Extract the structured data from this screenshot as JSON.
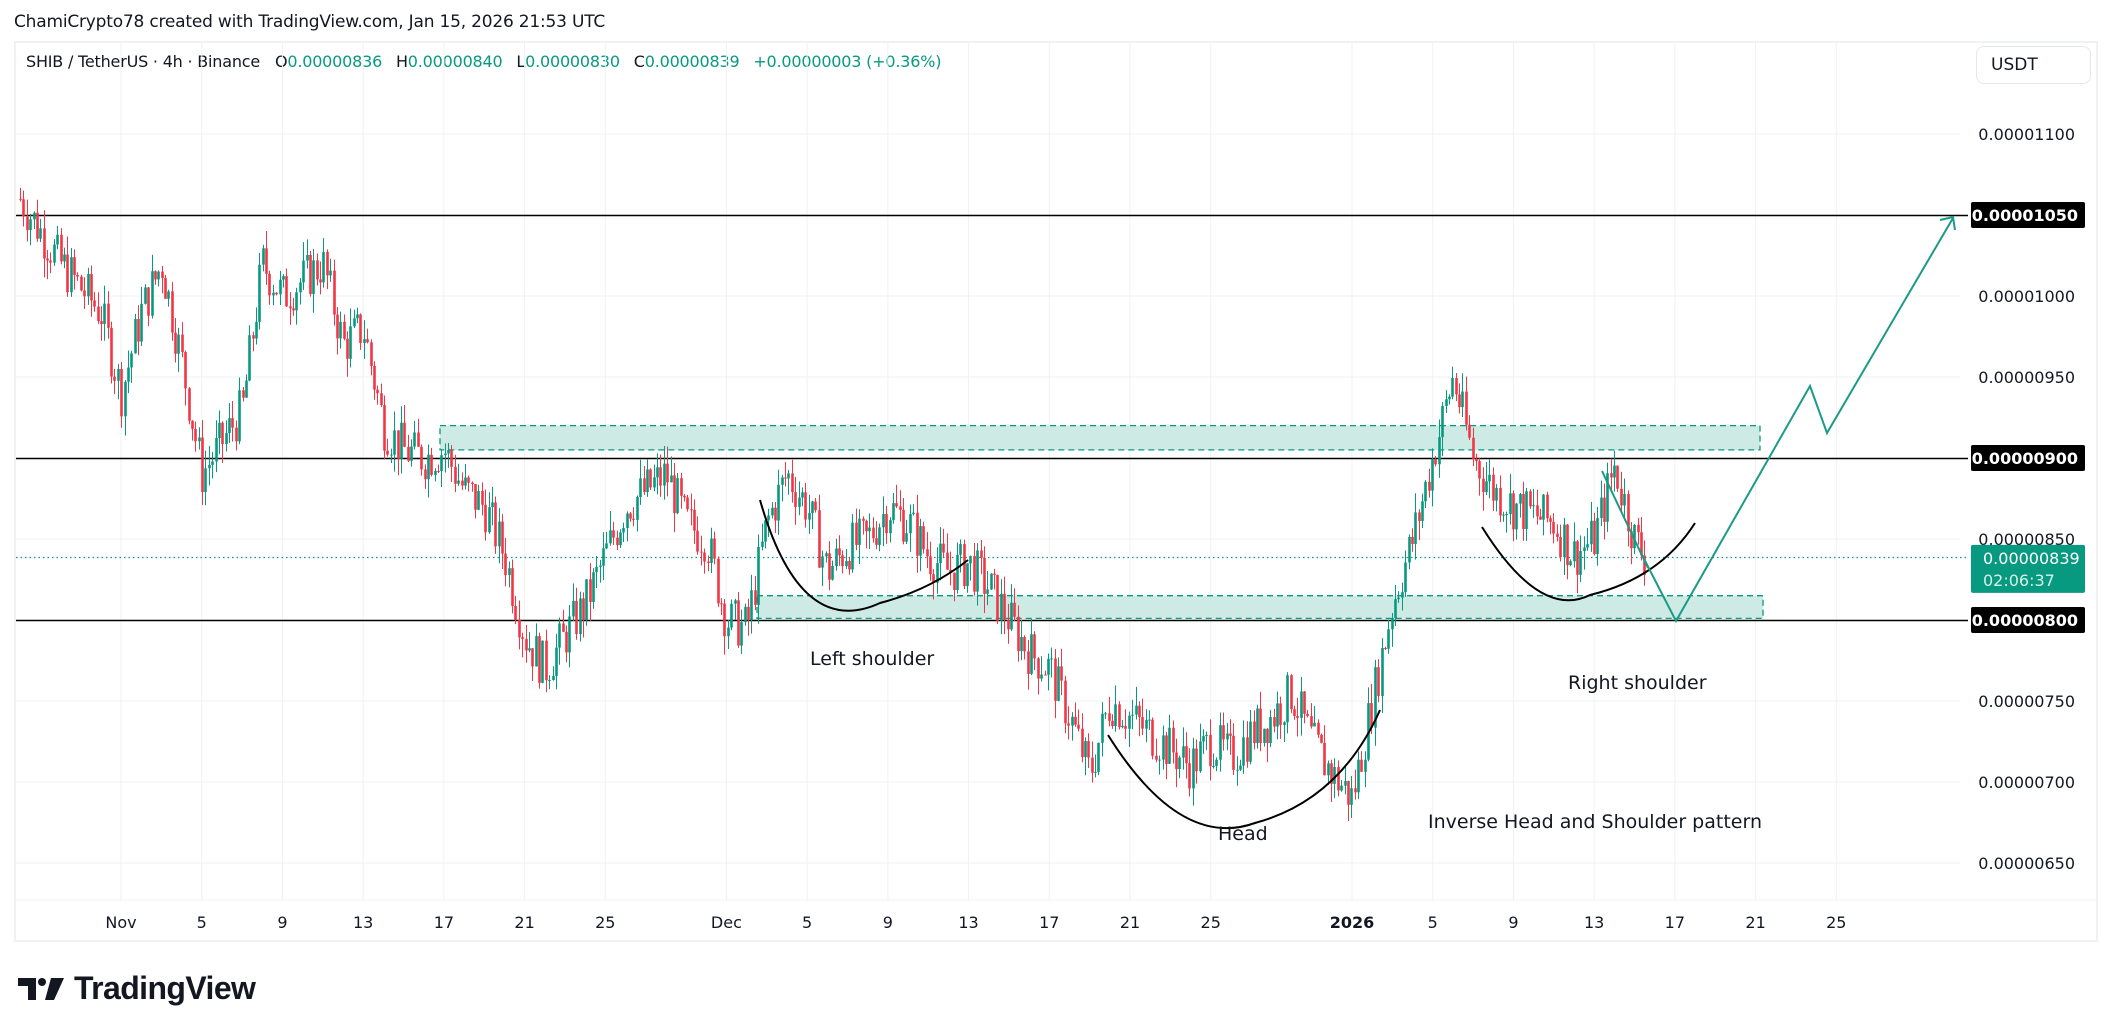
{
  "attribution": "ChamiCrypto78 created with TradingView.com, Jan 15, 2026 21:53 UTC",
  "legend": {
    "symbol": "SHIB / TetherUS · 4h · Binance",
    "open_label": "O",
    "open": "0.00000836",
    "high_label": "H",
    "high": "0.00000840",
    "low_label": "L",
    "low": "0.00000830",
    "close_label": "C",
    "close": "0.00000839",
    "change": "+0.00000003 (+0.36%)"
  },
  "currency_button": "USDT",
  "colors": {
    "up": "#089981",
    "down": "#f23645",
    "zone_fill": "#cdebe4",
    "zone_border": "#089981",
    "level_line": "#000000",
    "grid": "#f0f1f3",
    "projection": "#1b9b86",
    "curve": "#000000"
  },
  "logo": {
    "text": "TradingView"
  },
  "chart_data": {
    "type": "candlestick",
    "title": "SHIB / TetherUS · 4h · Binance",
    "xlabel": "",
    "ylabel": "USDT",
    "ylim": [
      6.2e-06,
      1.13e-05
    ],
    "grid": true,
    "y_ticks": [
      "0.00001100",
      "0.00001050",
      "0.00001000",
      "0.00000950",
      "0.00000900",
      "0.00000850",
      "0.00000800",
      "0.00000750",
      "0.00000700",
      "0.00000650"
    ],
    "x_ticks": [
      "Nov",
      "5",
      "9",
      "13",
      "17",
      "21",
      "25",
      "Dec",
      "5",
      "9",
      "13",
      "17",
      "21",
      "25",
      "2026",
      "5",
      "9",
      "13",
      "17",
      "21",
      "25"
    ],
    "horizontal_levels": [
      {
        "price": 1.05e-05,
        "label": "0.00001050"
      },
      {
        "price": 9e-06,
        "label": "0.00000900"
      },
      {
        "price": 8e-06,
        "label": "0.00000800"
      }
    ],
    "current_price": {
      "price": 8.39e-06,
      "label": "0.00000839",
      "countdown": "02:06:37"
    },
    "zones": [
      {
        "name": "resistance-zone",
        "top": 9.2e-06,
        "bottom": 9.05e-06,
        "from": "Nov 17",
        "to": "Jan 21"
      },
      {
        "name": "support-zone",
        "top": 8.15e-06,
        "bottom": 8.01e-06,
        "from": "Dec 3",
        "to": "Jan 21"
      }
    ],
    "annotations": [
      {
        "text": "Left shoulder",
        "date": "Dec 8",
        "price": 7.77e-06
      },
      {
        "text": "Head",
        "date": "Dec 26",
        "price": 6.68e-06
      },
      {
        "text": "Right shoulder",
        "date": "Jan 14",
        "price": 7.63e-06
      },
      {
        "text": "Inverse Head and Shoulder pattern",
        "date": "Jan 12",
        "price": 6.79e-06
      }
    ],
    "price_path": [
      [
        "Oct 27",
        1.06e-05
      ],
      [
        "Oct 29",
        1.02e-05
      ],
      [
        "Oct 31",
        9.9e-06
      ],
      [
        "Nov 1",
        9.4e-06
      ],
      [
        "Nov 2",
        9.9e-06
      ],
      [
        "Nov 3",
        1.02e-05
      ],
      [
        "Nov 4",
        9.6e-06
      ],
      [
        "Nov 5",
        8.9e-06
      ],
      [
        "Nov 6",
        9.1e-06
      ],
      [
        "Nov 7",
        9.3e-06
      ],
      [
        "Nov 8",
        1.02e-05
      ],
      [
        "Nov 9",
        1e-05
      ],
      [
        "Nov 10",
        1.01e-05
      ],
      [
        "Nov 11",
        1.02e-05
      ],
      [
        "Nov 12",
        9.7e-06
      ],
      [
        "Nov 13",
        9.8e-06
      ],
      [
        "Nov 14",
        9.2e-06
      ],
      [
        "Nov 15",
        9.05e-06
      ],
      [
        "Nov 16",
        9e-06
      ],
      [
        "Nov 17",
        9.05e-06
      ],
      [
        "Nov 18",
        8.8e-06
      ],
      [
        "Nov 19",
        8.7e-06
      ],
      [
        "Nov 20",
        8.4e-06
      ],
      [
        "Nov 21",
        7.9e-06
      ],
      [
        "Nov 22",
        7.7e-06
      ],
      [
        "Nov 23",
        7.9e-06
      ],
      [
        "Nov 24",
        8.1e-06
      ],
      [
        "Nov 25",
        8.4e-06
      ],
      [
        "Nov 26",
        8.7e-06
      ],
      [
        "Nov 27",
        8.8e-06
      ],
      [
        "Nov 28",
        8.9e-06
      ],
      [
        "Nov 29",
        8.6e-06
      ],
      [
        "Nov 30",
        8.5e-06
      ],
      [
        "Dec 1",
        8e-06
      ],
      [
        "Dec 2",
        7.95e-06
      ],
      [
        "Dec 3",
        8.6e-06
      ],
      [
        "Dec 4",
        8.9e-06
      ],
      [
        "Dec 5",
        8.7e-06
      ],
      [
        "Dec 6",
        8.3e-06
      ],
      [
        "Dec 7",
        8.45e-06
      ],
      [
        "Dec 8",
        8.5e-06
      ],
      [
        "Dec 9",
        8.7e-06
      ],
      [
        "Dec 10",
        8.6e-06
      ],
      [
        "Dec 11",
        8.4e-06
      ],
      [
        "Dec 12",
        8.3e-06
      ],
      [
        "Dec 13",
        8.35e-06
      ],
      [
        "Dec 14",
        8.2e-06
      ],
      [
        "Dec 15",
        8e-06
      ],
      [
        "Dec 16",
        7.8e-06
      ],
      [
        "Dec 17",
        7.7e-06
      ],
      [
        "Dec 18",
        7.4e-06
      ],
      [
        "Dec 19",
        7.05e-06
      ],
      [
        "Dec 20",
        7.5e-06
      ],
      [
        "Dec 21",
        7.4e-06
      ],
      [
        "Dec 22",
        7.3e-06
      ],
      [
        "Dec 23",
        7.2e-06
      ],
      [
        "Dec 24",
        7.1e-06
      ],
      [
        "Dec 25",
        7.25e-06
      ],
      [
        "Dec 26",
        7.15e-06
      ],
      [
        "Dec 27",
        7.3e-06
      ],
      [
        "Dec 28",
        7.4e-06
      ],
      [
        "Dec 29",
        7.55e-06
      ],
      [
        "Dec 30",
        7.25e-06
      ],
      [
        "Dec 31",
        7.05e-06
      ],
      [
        "Jan 1",
        6.9e-06
      ],
      [
        "Jan 2",
        7.5e-06
      ],
      [
        "Jan 3",
        8.1e-06
      ],
      [
        "Jan 4",
        8.5e-06
      ],
      [
        "Jan 5",
        9e-06
      ],
      [
        "Jan 6",
        9.5e-06
      ],
      [
        "Jan 7",
        9e-06
      ],
      [
        "Jan 8",
        8.8e-06
      ],
      [
        "Jan 9",
        8.7e-06
      ],
      [
        "Jan 10",
        8.65e-06
      ],
      [
        "Jan 11",
        8.6e-06
      ],
      [
        "Jan 12",
        8.4e-06
      ],
      [
        "Jan 13",
        8.5e-06
      ],
      [
        "Jan 14",
        8.95e-06
      ],
      [
        "Jan 15",
        8.5e-06
      ],
      [
        "Jan 15.5",
        8.39e-06
      ]
    ],
    "projection_path": [
      [
        "Jan 15",
        8.8e-06
      ],
      [
        "Jan 17",
        8e-06
      ],
      [
        "Jan 24",
        9.45e-06
      ],
      [
        "Jan 25",
        9.16e-06
      ],
      [
        "Feb 1",
        1.05e-05
      ]
    ]
  }
}
